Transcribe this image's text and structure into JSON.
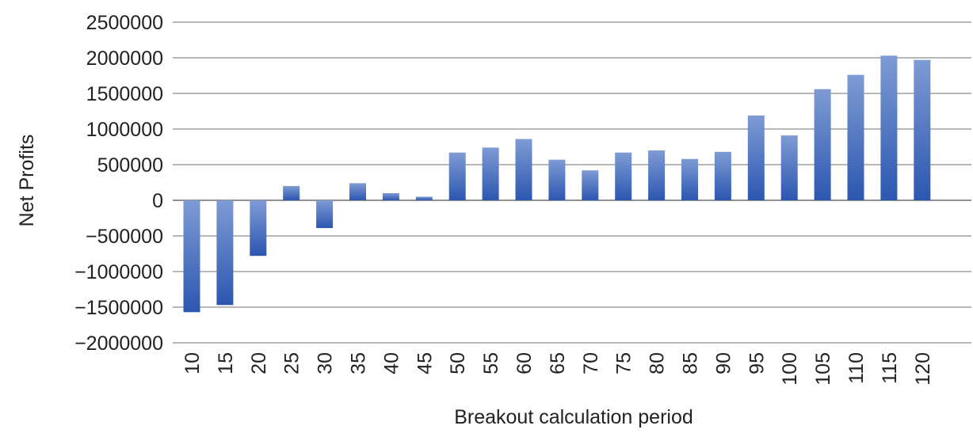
{
  "chart_data": {
    "type": "bar",
    "title": "",
    "xlabel": "Breakout calculation period",
    "ylabel": "Net Profits",
    "ylim": [
      -2000000,
      2500000
    ],
    "y_ticks": [
      2500000,
      2000000,
      1500000,
      1000000,
      500000,
      0,
      -500000,
      -1000000,
      -1500000,
      -2000000
    ],
    "y_tick_labels": [
      "2500000",
      "2000000",
      "1500000",
      "1000000",
      "500000",
      "0",
      "−500000",
      "−1000000",
      "−1500000",
      "−2000000"
    ],
    "grid": true,
    "legend": "none",
    "categories": [
      "10",
      "15",
      "20",
      "25",
      "30",
      "35",
      "40",
      "45",
      "50",
      "55",
      "60",
      "65",
      "70",
      "75",
      "80",
      "85",
      "90",
      "95",
      "100",
      "105",
      "110",
      "115",
      "120"
    ],
    "values": [
      -1570000,
      -1470000,
      -780000,
      200000,
      -390000,
      240000,
      100000,
      50000,
      670000,
      740000,
      860000,
      570000,
      420000,
      670000,
      700000,
      580000,
      680000,
      1190000,
      910000,
      1560000,
      1760000,
      2030000,
      1970000
    ],
    "bar_color_light": "#7e9bd4",
    "bar_color_dark": "#2c56b0"
  }
}
